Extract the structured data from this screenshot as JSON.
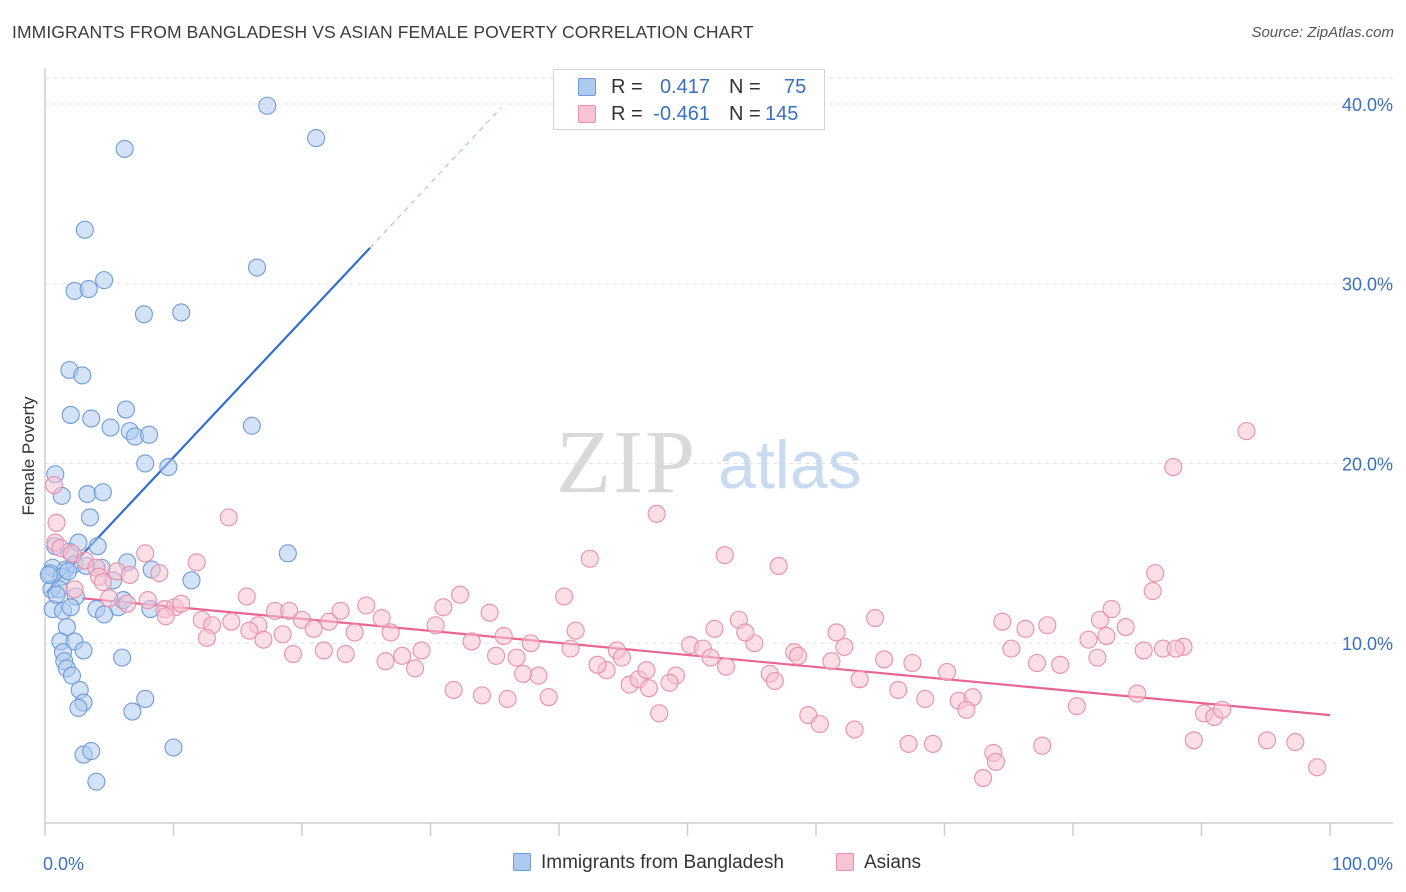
{
  "title": "IMMIGRANTS FROM BANGLADESH VS ASIAN FEMALE POVERTY CORRELATION CHART",
  "source": "Source: ZipAtlas.com",
  "watermark": {
    "zip": "ZIP",
    "atlas": "atlas"
  },
  "legend": {
    "r_label": "R =",
    "n_label": "N =",
    "rows": [
      {
        "r": "0.417",
        "n": "75",
        "color": "#aecbef",
        "border": "#6f9bd8"
      },
      {
        "r": "-0.461",
        "n": "145",
        "color": "#f8c3d2",
        "border": "#e890ab"
      }
    ]
  },
  "bottom_legend": [
    {
      "label": "Immigrants from Bangladesh",
      "color": "#aecbef",
      "border": "#6f9bd8"
    },
    {
      "label": "Asians",
      "color": "#f8c3d2",
      "border": "#e890ab"
    }
  ],
  "chart_data": {
    "type": "scatter",
    "title": "IMMIGRANTS FROM BANGLADESH VS ASIAN FEMALE POVERTY CORRELATION CHART",
    "xlabel": "",
    "ylabel": "Female Poverty",
    "xlim": [
      0,
      100
    ],
    "ylim": [
      0,
      42
    ],
    "x_tick_labels": [
      "0.0%",
      "100.0%"
    ],
    "y_ticks": [
      10,
      20,
      30,
      40
    ],
    "y_tick_labels": [
      "10.0%",
      "20.0%",
      "30.0%",
      "40.0%"
    ],
    "grid": true,
    "legend_position": "top-center",
    "series": [
      {
        "name": "Immigrants from Bangladesh",
        "color": "#6f9bd8",
        "fill": "#aecbef",
        "line_color": "#2f6fce",
        "trend": {
          "x0": 0.1,
          "y0": 12.8,
          "x1": 25.3,
          "y1": 32.0,
          "dash_to_x": 35.5,
          "dash_to_y": 39.8
        },
        "points": [
          [
            17.3,
            39.9
          ],
          [
            21.1,
            38.1
          ],
          [
            6.2,
            37.5
          ],
          [
            3.1,
            33.0
          ],
          [
            16.5,
            30.9
          ],
          [
            4.6,
            30.2
          ],
          [
            2.3,
            29.6
          ],
          [
            3.4,
            29.7
          ],
          [
            7.7,
            28.3
          ],
          [
            10.6,
            28.4
          ],
          [
            1.9,
            25.2
          ],
          [
            2.9,
            24.9
          ],
          [
            6.3,
            23.0
          ],
          [
            2.0,
            22.7
          ],
          [
            3.6,
            22.5
          ],
          [
            5.1,
            22.0
          ],
          [
            16.1,
            22.1
          ],
          [
            6.6,
            21.8
          ],
          [
            7.0,
            21.5
          ],
          [
            8.1,
            21.6
          ],
          [
            7.8,
            20.0
          ],
          [
            9.6,
            19.8
          ],
          [
            0.8,
            19.4
          ],
          [
            3.3,
            18.3
          ],
          [
            4.5,
            18.4
          ],
          [
            1.3,
            18.2
          ],
          [
            3.5,
            17.0
          ],
          [
            0.8,
            15.4
          ],
          [
            1.9,
            15.1
          ],
          [
            2.6,
            15.6
          ],
          [
            4.1,
            15.4
          ],
          [
            18.9,
            15.0
          ],
          [
            0.6,
            14.2
          ],
          [
            1.6,
            14.1
          ],
          [
            2.3,
            14.4
          ],
          [
            3.2,
            14.3
          ],
          [
            4.4,
            14.2
          ],
          [
            6.4,
            14.5
          ],
          [
            8.3,
            14.1
          ],
          [
            0.4,
            13.9
          ],
          [
            1.3,
            13.7
          ],
          [
            0.5,
            13.0
          ],
          [
            1.1,
            13.0
          ],
          [
            5.3,
            13.5
          ],
          [
            11.4,
            13.5
          ],
          [
            2.4,
            12.6
          ],
          [
            5.7,
            12.0
          ],
          [
            6.1,
            12.4
          ],
          [
            0.6,
            11.9
          ],
          [
            1.4,
            11.8
          ],
          [
            2.0,
            12.0
          ],
          [
            4.0,
            11.9
          ],
          [
            8.2,
            11.9
          ],
          [
            4.6,
            11.6
          ],
          [
            1.7,
            10.9
          ],
          [
            1.2,
            10.1
          ],
          [
            2.3,
            10.1
          ],
          [
            1.4,
            9.5
          ],
          [
            3.0,
            9.6
          ],
          [
            6.0,
            9.2
          ],
          [
            1.5,
            9.0
          ],
          [
            1.7,
            8.6
          ],
          [
            2.1,
            8.2
          ],
          [
            2.7,
            7.4
          ],
          [
            3.0,
            6.7
          ],
          [
            7.8,
            6.9
          ],
          [
            2.6,
            6.4
          ],
          [
            6.8,
            6.2
          ],
          [
            3.0,
            3.8
          ],
          [
            3.6,
            4.0
          ],
          [
            10.0,
            4.2
          ],
          [
            4.0,
            2.3
          ],
          [
            0.3,
            13.8
          ],
          [
            1.8,
            14.0
          ],
          [
            0.9,
            12.7
          ]
        ]
      },
      {
        "name": "Asians",
        "color": "#e890ab",
        "fill": "#f8c3d2",
        "line_color": "#e8658f",
        "trend": {
          "x0": 2.9,
          "y0": 12.5,
          "x1": 100.0,
          "y1": 6.0
        },
        "points": [
          [
            0.9,
            16.7
          ],
          [
            0.7,
            18.8
          ],
          [
            0.8,
            15.6
          ],
          [
            1.2,
            15.3
          ],
          [
            2.1,
            15.0
          ],
          [
            3.1,
            14.6
          ],
          [
            4.0,
            14.2
          ],
          [
            5.6,
            14.0
          ],
          [
            7.8,
            15.0
          ],
          [
            11.8,
            14.5
          ],
          [
            4.2,
            13.7
          ],
          [
            4.5,
            13.4
          ],
          [
            6.6,
            13.8
          ],
          [
            8.9,
            13.9
          ],
          [
            14.3,
            17.0
          ],
          [
            2.3,
            13.0
          ],
          [
            5.0,
            12.5
          ],
          [
            6.4,
            12.2
          ],
          [
            8.0,
            12.4
          ],
          [
            9.3,
            11.9
          ],
          [
            10.1,
            12.0
          ],
          [
            10.6,
            12.2
          ],
          [
            12.2,
            11.3
          ],
          [
            13.0,
            11.0
          ],
          [
            14.5,
            11.2
          ],
          [
            15.7,
            12.6
          ],
          [
            16.6,
            11.0
          ],
          [
            17.9,
            11.8
          ],
          [
            19.0,
            11.8
          ],
          [
            20.0,
            11.3
          ],
          [
            18.5,
            10.5
          ],
          [
            20.9,
            10.8
          ],
          [
            22.1,
            11.2
          ],
          [
            23.0,
            11.8
          ],
          [
            24.1,
            10.6
          ],
          [
            25.0,
            12.1
          ],
          [
            26.2,
            11.4
          ],
          [
            26.9,
            10.6
          ],
          [
            27.8,
            9.3
          ],
          [
            29.3,
            9.6
          ],
          [
            30.4,
            11.0
          ],
          [
            31.0,
            12.0
          ],
          [
            32.3,
            12.7
          ],
          [
            33.2,
            10.1
          ],
          [
            34.6,
            11.7
          ],
          [
            35.7,
            10.4
          ],
          [
            36.7,
            9.2
          ],
          [
            37.8,
            10.0
          ],
          [
            38.4,
            8.2
          ],
          [
            39.2,
            7.0
          ],
          [
            40.4,
            12.6
          ],
          [
            41.3,
            10.7
          ],
          [
            42.4,
            14.7
          ],
          [
            43.7,
            8.5
          ],
          [
            44.5,
            9.6
          ],
          [
            45.5,
            7.7
          ],
          [
            46.2,
            8.0
          ],
          [
            47.0,
            7.5
          ],
          [
            47.6,
            17.2
          ],
          [
            49.1,
            8.2
          ],
          [
            50.2,
            9.9
          ],
          [
            51.2,
            9.7
          ],
          [
            52.1,
            10.8
          ],
          [
            53.0,
            8.7
          ],
          [
            54.0,
            11.3
          ],
          [
            55.2,
            10.0
          ],
          [
            56.4,
            8.3
          ],
          [
            57.1,
            14.3
          ],
          [
            58.3,
            9.5
          ],
          [
            59.4,
            6.0
          ],
          [
            60.3,
            5.5
          ],
          [
            61.2,
            9.0
          ],
          [
            62.2,
            9.8
          ],
          [
            63.4,
            8.0
          ],
          [
            64.6,
            11.4
          ],
          [
            65.3,
            9.1
          ],
          [
            66.4,
            7.4
          ],
          [
            67.5,
            8.9
          ],
          [
            68.5,
            6.9
          ],
          [
            69.1,
            4.4
          ],
          [
            70.2,
            8.4
          ],
          [
            71.1,
            6.8
          ],
          [
            72.2,
            7.0
          ],
          [
            73.0,
            2.5
          ],
          [
            73.8,
            3.9
          ],
          [
            74.5,
            11.2
          ],
          [
            75.2,
            9.7
          ],
          [
            76.3,
            10.8
          ],
          [
            77.2,
            8.9
          ],
          [
            78.0,
            11.0
          ],
          [
            79.0,
            8.8
          ],
          [
            80.3,
            6.5
          ],
          [
            81.2,
            10.2
          ],
          [
            82.1,
            11.3
          ],
          [
            83.0,
            11.9
          ],
          [
            84.1,
            10.9
          ],
          [
            85.0,
            7.2
          ],
          [
            86.2,
            12.9
          ],
          [
            87.0,
            9.7
          ],
          [
            87.8,
            19.8
          ],
          [
            88.6,
            9.8
          ],
          [
            89.4,
            4.6
          ],
          [
            90.2,
            6.1
          ],
          [
            91.0,
            5.9
          ],
          [
            91.6,
            6.3
          ],
          [
            93.5,
            21.8
          ],
          [
            95.1,
            4.6
          ],
          [
            97.3,
            4.5
          ],
          [
            99.0,
            3.1
          ],
          [
            85.5,
            9.6
          ],
          [
            47.8,
            6.1
          ],
          [
            34.0,
            7.1
          ],
          [
            36.0,
            6.9
          ],
          [
            44.9,
            9.2
          ],
          [
            46.8,
            8.5
          ],
          [
            52.9,
            14.9
          ],
          [
            56.8,
            7.9
          ],
          [
            61.6,
            10.6
          ],
          [
            63.0,
            5.2
          ],
          [
            67.2,
            4.4
          ],
          [
            71.7,
            6.3
          ],
          [
            74.0,
            3.4
          ],
          [
            77.6,
            4.3
          ],
          [
            81.9,
            9.2
          ],
          [
            82.6,
            10.4
          ],
          [
            21.7,
            9.6
          ],
          [
            19.3,
            9.4
          ],
          [
            12.6,
            10.3
          ],
          [
            9.4,
            11.5
          ],
          [
            15.9,
            10.7
          ],
          [
            26.5,
            9.0
          ],
          [
            28.8,
            8.6
          ],
          [
            31.8,
            7.4
          ],
          [
            35.1,
            9.3
          ],
          [
            40.9,
            9.7
          ],
          [
            43.0,
            8.8
          ],
          [
            48.6,
            7.8
          ],
          [
            51.8,
            9.2
          ],
          [
            54.5,
            10.6
          ],
          [
            58.6,
            9.3
          ],
          [
            86.4,
            13.9
          ],
          [
            17.0,
            10.2
          ],
          [
            23.4,
            9.4
          ],
          [
            37.2,
            8.3
          ],
          [
            88.0,
            9.7
          ]
        ]
      }
    ]
  }
}
